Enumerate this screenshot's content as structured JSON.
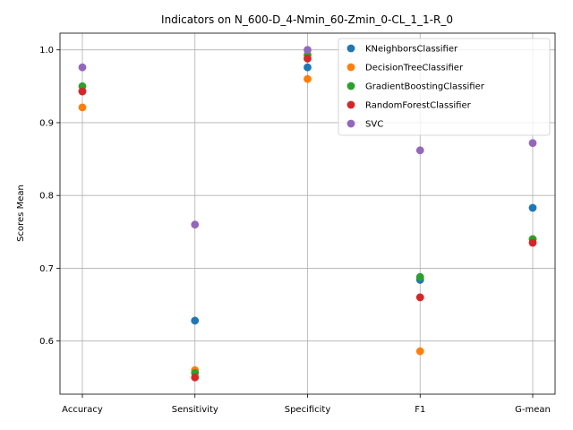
{
  "chart_data": {
    "type": "scatter",
    "title": "Indicators on N_600-D_4-Nmin_60-Zmin_0-CL_1_1-R_0",
    "xlabel": "",
    "ylabel": "Scores Mean",
    "categories": [
      "Accuracy",
      "Sensitivity",
      "Specificity",
      "F1",
      "G-mean"
    ],
    "ylim": [
      0.527,
      1.023
    ],
    "yticks": [
      "0.6",
      "0.7",
      "0.8",
      "0.9",
      "1.0"
    ],
    "grid": true,
    "legend_position": "top-right",
    "series": [
      {
        "name": "KNeighborsClassifier",
        "color": "#1f77b4",
        "values": [
          0.943,
          0.628,
          0.976,
          0.684,
          0.783
        ]
      },
      {
        "name": "DecisionTreeClassifier",
        "color": "#ff7f0e",
        "values": [
          0.921,
          0.56,
          0.96,
          0.586,
          0.74
        ]
      },
      {
        "name": "GradientBoostingClassifier",
        "color": "#2ca02c",
        "values": [
          0.95,
          0.556,
          0.993,
          0.688,
          0.74
        ]
      },
      {
        "name": "RandomForestClassifier",
        "color": "#d62728",
        "values": [
          0.943,
          0.55,
          0.988,
          0.66,
          0.735
        ]
      },
      {
        "name": "SVC",
        "color": "#9467bd",
        "values": [
          0.976,
          0.76,
          1.0,
          0.862,
          0.872
        ]
      }
    ]
  }
}
